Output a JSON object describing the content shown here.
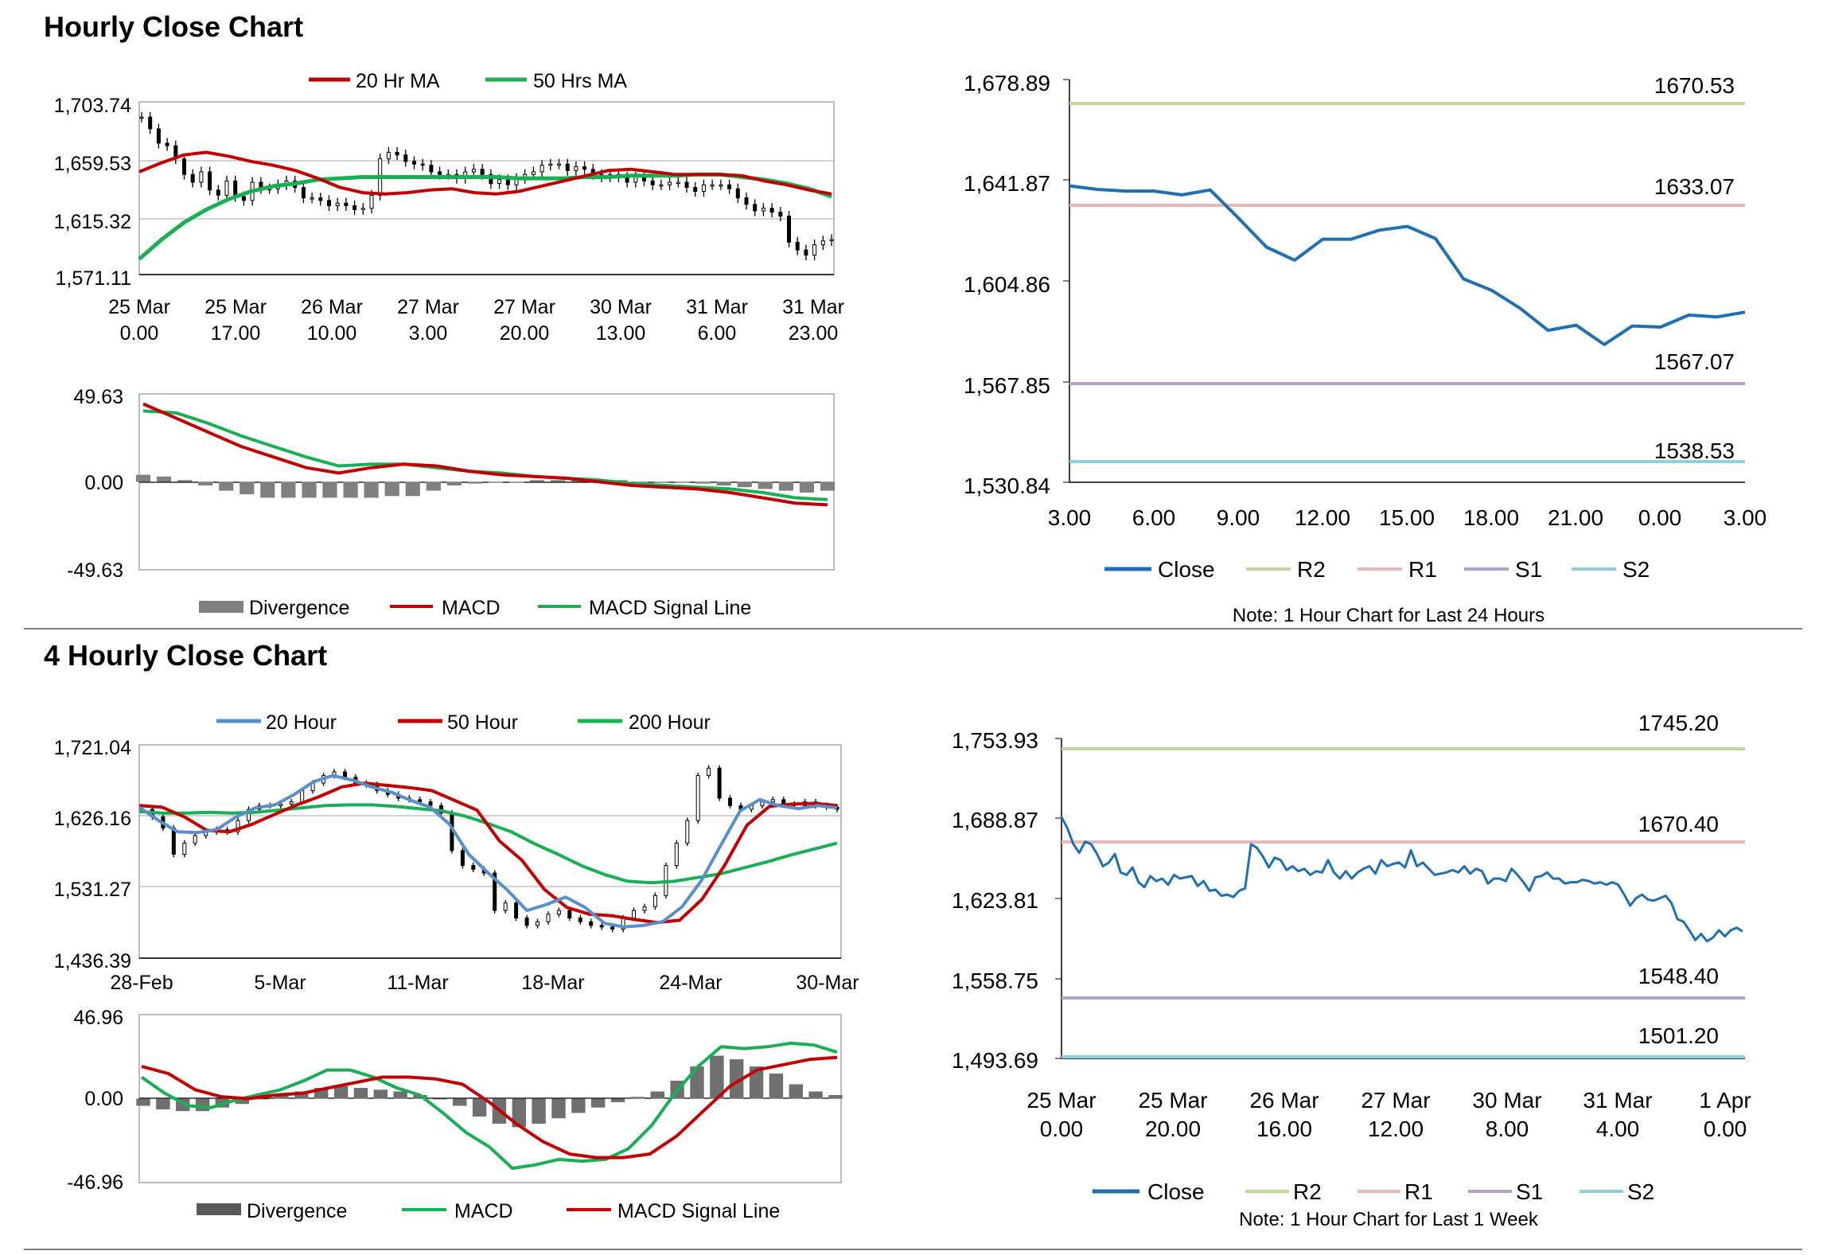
{
  "sections": {
    "hourly_title": "Hourly Close Chart",
    "four_hourly_title": "4 Hourly Close Chart"
  },
  "colors": {
    "red": "#c00000",
    "green": "#1aaf54",
    "blue": "#5b8fc9",
    "close_blue": "#1f6fb2",
    "r2": "#c3d69b",
    "r1": "#e6b9b8",
    "s1": "#b3a2c7",
    "s2": "#93cddd",
    "grey": "#808080",
    "grid": "#a6a6a6"
  },
  "chart_data": [
    {
      "id": "hourly_price",
      "type": "line",
      "legend": [
        "20 Hr MA",
        "50 Hrs MA"
      ],
      "y_ticks": [
        "1,703.74",
        "1,659.53",
        "1,615.32",
        "1,571.11"
      ],
      "ylim": [
        1571.11,
        1703.74
      ],
      "x_ticks": [
        [
          "25 Mar",
          "0.00"
        ],
        [
          "25 Mar",
          "17.00"
        ],
        [
          "26 Mar",
          "10.00"
        ],
        [
          "27 Mar",
          "3.00"
        ],
        [
          "27 Mar",
          "20.00"
        ],
        [
          "30 Mar",
          "13.00"
        ],
        [
          "31 Mar",
          "6.00"
        ],
        [
          "31 Mar",
          "23.00"
        ]
      ],
      "series": [
        {
          "name": "Price",
          "kind": "candles",
          "values": [
            1692,
            1683,
            1672,
            1670,
            1660,
            1648,
            1642,
            1650,
            1636,
            1632,
            1643,
            1631,
            1628,
            1642,
            1637,
            1637,
            1640,
            1643,
            1638,
            1630,
            1630,
            1628,
            1624,
            1626,
            1624,
            1621,
            1622,
            1632,
            1660,
            1665,
            1663,
            1658,
            1656,
            1655,
            1650,
            1648,
            1648,
            1645,
            1650,
            1652,
            1648,
            1641,
            1644,
            1640,
            1645,
            1648,
            1650,
            1655,
            1656,
            1656,
            1651,
            1654,
            1652,
            1648,
            1646,
            1648,
            1646,
            1642,
            1646,
            1643,
            1640,
            1640,
            1642,
            1642,
            1638,
            1635,
            1640,
            1640,
            1640,
            1637,
            1630,
            1625,
            1620,
            1622,
            1619,
            1616,
            1596,
            1590,
            1586,
            1594,
            1597,
            1598
          ]
        },
        {
          "name": "20 Hr MA",
          "values": [
            1650,
            1657,
            1663,
            1665,
            1662,
            1658,
            1655,
            1651,
            1645,
            1638,
            1634,
            1633,
            1634,
            1636,
            1637,
            1634,
            1633,
            1635,
            1639,
            1643,
            1647,
            1651,
            1652,
            1650,
            1648,
            1648,
            1648,
            1647,
            1643,
            1640,
            1636,
            1633
          ]
        },
        {
          "name": "50 Hrs MA",
          "values": [
            1583,
            1598,
            1611,
            1621,
            1629,
            1635,
            1639,
            1641,
            1644,
            1645,
            1646,
            1646,
            1646,
            1646,
            1646,
            1646,
            1646,
            1645,
            1645,
            1645,
            1646,
            1646,
            1647,
            1647,
            1647,
            1648,
            1648,
            1646,
            1644,
            1641,
            1637,
            1631
          ]
        }
      ]
    },
    {
      "id": "hourly_macd",
      "type": "bar",
      "legend": [
        "Divergence",
        "MACD",
        "MACD Signal Line"
      ],
      "y_ticks": [
        "49.63",
        "0.00",
        "-49.63"
      ],
      "ylim": [
        -49.63,
        49.63
      ],
      "series": [
        {
          "name": "Divergence",
          "values": [
            4,
            3,
            1,
            -2,
            -5,
            -7,
            -9,
            -9,
            -9,
            -9,
            -9,
            -9,
            -8,
            -8,
            -5,
            -2,
            -1,
            0,
            0,
            1,
            1,
            1,
            1,
            1,
            0,
            0,
            0,
            -1,
            -2,
            -3,
            -4,
            -5,
            -6,
            -5
          ]
        },
        {
          "name": "MACD",
          "values": [
            44,
            36,
            28,
            20,
            14,
            8,
            5,
            8,
            10,
            9,
            6,
            4,
            3,
            2,
            0,
            -2,
            -3,
            -4,
            -6,
            -9,
            -12,
            -13
          ]
        },
        {
          "name": "MACD Signal Line",
          "values": [
            40,
            39,
            33,
            26,
            20,
            14,
            9,
            10,
            10,
            8,
            6,
            5,
            3,
            2,
            1,
            -1,
            -2,
            -3,
            -4,
            -6,
            -9,
            -10
          ]
        }
      ]
    },
    {
      "id": "hourly_close_24h",
      "type": "line",
      "y_ticks": [
        "1,678.89",
        "1,641.87",
        "1,604.86",
        "1,567.85",
        "1,530.84"
      ],
      "ylim": [
        1530.84,
        1678.89
      ],
      "x_ticks": [
        "3.00",
        "6.00",
        "9.00",
        "12.00",
        "15.00",
        "18.00",
        "21.00",
        "0.00",
        "3.00"
      ],
      "levels": [
        {
          "name": "R2",
          "value": "1670.53"
        },
        {
          "name": "R1",
          "value": "1633.07"
        },
        {
          "name": "S1",
          "value": "1567.07"
        },
        {
          "name": "S2",
          "value": "1538.53"
        }
      ],
      "legend": [
        "Close",
        "R2",
        "R1",
        "S1",
        "S2"
      ],
      "note": "Note: 1 Hour Chart for Last 24 Hours",
      "x": [
        0,
        1,
        2,
        3,
        4,
        5,
        6,
        7,
        8,
        9,
        10,
        11,
        12,
        13,
        14,
        15,
        16,
        17,
        18,
        19,
        20,
        21,
        22,
        23,
        24
      ],
      "series": [
        {
          "name": "Close",
          "values": [
            1639.8,
            1638.5,
            1637.9,
            1637.9,
            1636.5,
            1638.3,
            1628,
            1617.3,
            1612.5,
            1620.2,
            1620.2,
            1623.5,
            1624.9,
            1620.5,
            1605.6,
            1601.4,
            1594.9,
            1586.7,
            1588.6,
            1581.5,
            1588.3,
            1587.9,
            1592.3,
            1591.6,
            1593.4
          ]
        }
      ]
    },
    {
      "id": "four_hourly_price",
      "type": "line",
      "legend": [
        "20 Hour",
        "50 Hour",
        "200 Hour"
      ],
      "y_ticks": [
        "1,721.04",
        "1,626.16",
        "1,531.27",
        "1,436.39"
      ],
      "ylim": [
        1436.39,
        1721.04
      ],
      "x_ticks": [
        "28-Feb",
        "5-Mar",
        "11-Mar",
        "18-Mar",
        "24-Mar",
        "30-Mar"
      ],
      "series": [
        {
          "name": "Price",
          "kind": "candles",
          "values": [
            1635,
            1625,
            1610,
            1575,
            1590,
            1600,
            1605,
            1608,
            1605,
            1620,
            1635,
            1640,
            1640,
            1642,
            1645,
            1660,
            1670,
            1680,
            1685,
            1678,
            1670,
            1668,
            1660,
            1655,
            1650,
            1648,
            1645,
            1640,
            1630,
            1580,
            1560,
            1555,
            1550,
            1500,
            1510,
            1490,
            1480,
            1485,
            1495,
            1500,
            1490,
            1485,
            1480,
            1478,
            1475,
            1490,
            1500,
            1505,
            1520,
            1560,
            1590,
            1620,
            1680,
            1690,
            1650,
            1640,
            1635,
            1640,
            1645,
            1648,
            1642,
            1640,
            1645,
            1640,
            1638,
            1635
          ]
        },
        {
          "name": "20 Hour",
          "values": [
            1638,
            1620,
            1605,
            1604,
            1608,
            1625,
            1637,
            1641,
            1655,
            1672,
            1680,
            1674,
            1665,
            1658,
            1647,
            1638,
            1615,
            1575,
            1550,
            1527,
            1500,
            1508,
            1518,
            1504,
            1483,
            1478,
            1480,
            1485,
            1505,
            1540,
            1587,
            1633,
            1648,
            1640,
            1636,
            1640,
            1637
          ]
        },
        {
          "name": "50 Hour",
          "values": [
            1640,
            1638,
            1625,
            1607,
            1605,
            1615,
            1628,
            1641,
            1652,
            1665,
            1670,
            1667,
            1664,
            1660,
            1647,
            1634,
            1593,
            1567,
            1528,
            1504,
            1495,
            1493,
            1488,
            1484,
            1487,
            1515,
            1560,
            1614,
            1639,
            1642,
            1643,
            1640
          ]
        },
        {
          "name": "200 Hour",
          "values": [
            1632,
            1630,
            1630,
            1631,
            1630,
            1631,
            1634,
            1637,
            1640,
            1641,
            1641,
            1639,
            1636,
            1633,
            1626,
            1616,
            1605,
            1589,
            1575,
            1560,
            1548,
            1539,
            1537,
            1539,
            1544,
            1549,
            1557,
            1565,
            1574,
            1582,
            1590
          ]
        }
      ]
    },
    {
      "id": "four_hourly_macd",
      "type": "bar",
      "legend": [
        "Divergence",
        "MACD",
        "MACD Signal Line"
      ],
      "y_ticks": [
        "46.96",
        "0.00",
        "-46.96"
      ],
      "ylim": [
        -46.96,
        46.96
      ],
      "series": [
        {
          "name": "Divergence",
          "values": [
            -4,
            -6,
            -7,
            -7,
            -5,
            -3,
            0,
            2,
            4,
            6,
            7,
            6,
            5,
            4,
            2,
            0,
            -4,
            -10,
            -14,
            -16,
            -14,
            -11,
            -8,
            -5,
            -2,
            1,
            4,
            10,
            18,
            24,
            22,
            18,
            14,
            8,
            4,
            2
          ]
        },
        {
          "name": "MACD",
          "values": [
            12,
            3,
            -4,
            -5,
            -1,
            2,
            5,
            10,
            16,
            16,
            12,
            6,
            2,
            -8,
            -19,
            -27,
            -39,
            -37,
            -34,
            -35,
            -34,
            -28,
            -15,
            3,
            18,
            29,
            28,
            29,
            31,
            30,
            26
          ]
        },
        {
          "name": "MACD Signal Line",
          "values": [
            18,
            14,
            5,
            1,
            0,
            2,
            3,
            6,
            9,
            12,
            12,
            11,
            8,
            -2,
            -14,
            -24,
            -31,
            -33,
            -33,
            -31,
            -21,
            -7,
            7,
            16,
            19,
            22,
            23
          ]
        }
      ]
    },
    {
      "id": "hourly_close_week",
      "type": "line",
      "y_ticks": [
        "1,753.93",
        "1,688.87",
        "1,623.81",
        "1,558.75",
        "1,493.69"
      ],
      "ylim": [
        1493.69,
        1753.93
      ],
      "x_ticks": [
        [
          "25 Mar",
          "0.00"
        ],
        [
          "25 Mar",
          "20.00"
        ],
        [
          "26 Mar",
          "16.00"
        ],
        [
          "27 Mar",
          "12.00"
        ],
        [
          "30 Mar",
          "8.00"
        ],
        [
          "31 Mar",
          "4.00"
        ],
        [
          "1 Apr",
          "0.00"
        ]
      ],
      "levels": [
        {
          "name": "R2",
          "value": "1745.20"
        },
        {
          "name": "R1",
          "value": "1670.40"
        },
        {
          "name": "S1",
          "value": "1548.40"
        },
        {
          "name": "S2",
          "value": "1501.20"
        }
      ],
      "legend": [
        "Close",
        "R2",
        "R1",
        "S1",
        "S2"
      ],
      "note": "Note: 1 Hour Chart for Last 1 Week",
      "series": [
        {
          "name": "Close",
          "values": [
            1690,
            1681,
            1668,
            1661,
            1670,
            1668,
            1660,
            1650,
            1653,
            1660,
            1645,
            1643,
            1649,
            1637,
            1633,
            1642,
            1638,
            1640,
            1635,
            1643,
            1640,
            1641,
            1642,
            1634,
            1638,
            1630,
            1631,
            1626,
            1627,
            1625,
            1630,
            1632,
            1668,
            1665,
            1658,
            1649,
            1657,
            1655,
            1647,
            1650,
            1646,
            1648,
            1643,
            1646,
            1645,
            1655,
            1645,
            1640,
            1646,
            1640,
            1645,
            1648,
            1650,
            1644,
            1655,
            1650,
            1652,
            1653,
            1649,
            1663,
            1650,
            1653,
            1648,
            1643,
            1644,
            1645,
            1647,
            1645,
            1650,
            1644,
            1648,
            1646,
            1636,
            1640,
            1640,
            1638,
            1648,
            1643,
            1637,
            1630,
            1641,
            1642,
            1645,
            1640,
            1640,
            1636,
            1637,
            1637,
            1639,
            1638,
            1636,
            1637,
            1635,
            1637,
            1635,
            1627,
            1618,
            1624,
            1627,
            1623,
            1622,
            1624,
            1626,
            1620,
            1607,
            1605,
            1598,
            1590,
            1595,
            1589,
            1592,
            1598,
            1593,
            1598,
            1600,
            1597
          ]
        }
      ]
    }
  ]
}
